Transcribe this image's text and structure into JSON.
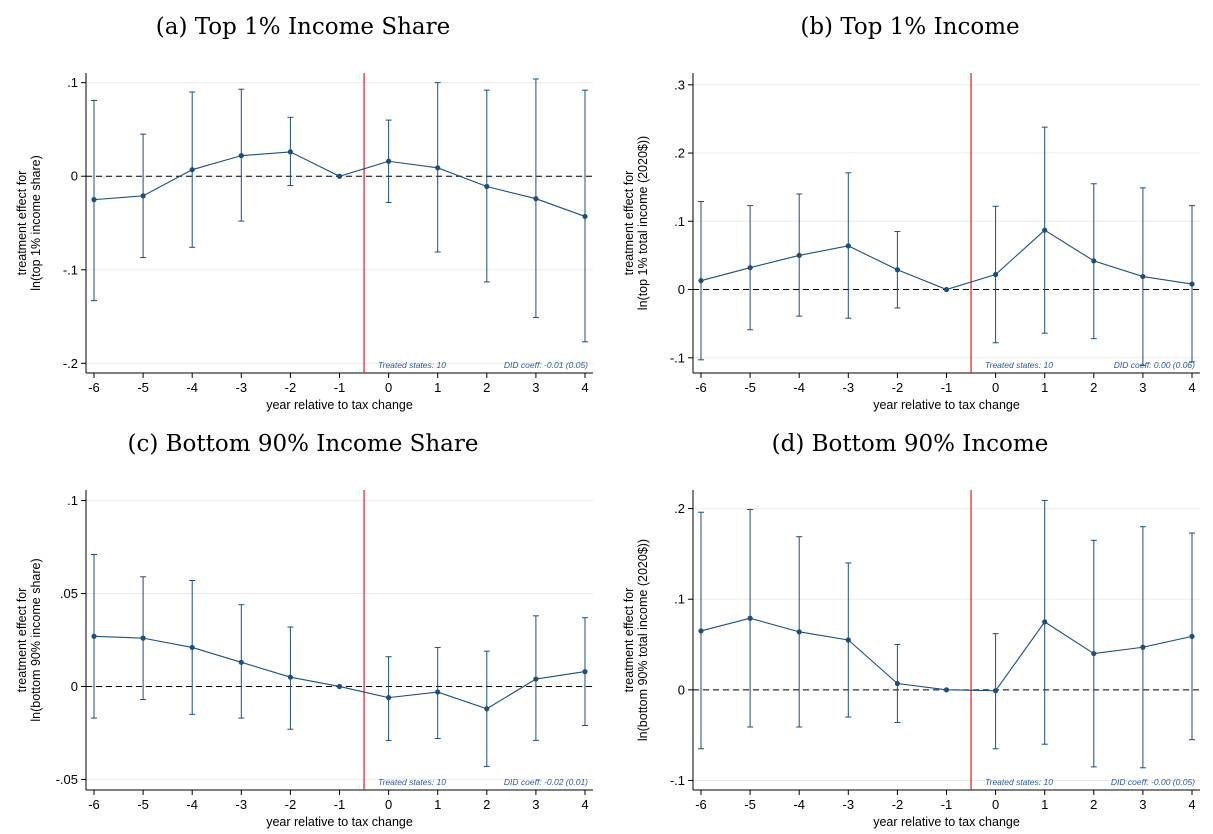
{
  "figure": {
    "panels": [
      {
        "title": "(a) Top 1% Income Share"
      },
      {
        "title": "(b) Top 1% Income"
      },
      {
        "title": "(c) Bottom 90% Income Share"
      },
      {
        "title": "(d) Bottom 90% Income"
      }
    ]
  },
  "chart_data": [
    {
      "type": "line",
      "title": "(a) Top 1% Income Share",
      "xlabel": "year relative to tax change",
      "ylabel": [
        "treatment effect for",
        "ln(top 1% income share)"
      ],
      "x": [
        -6,
        -5,
        -4,
        -3,
        -2,
        -1,
        0,
        1,
        2,
        3,
        4
      ],
      "xtick_labels": [
        "-6",
        "-5",
        "-4",
        "-3",
        "-2",
        "-1",
        "0",
        "1",
        "2",
        "3",
        "4"
      ],
      "ylim": [
        -0.205,
        0.105
      ],
      "yticks": [
        -0.2,
        -0.1,
        0,
        0.1
      ],
      "ytick_labels": [
        "-.2",
        "-.1",
        "0",
        ".1"
      ],
      "series": [
        {
          "estimate": [
            -0.025,
            -0.021,
            0.007,
            0.022,
            0.026,
            0.0,
            0.016,
            0.009,
            -0.011,
            -0.024,
            -0.043
          ],
          "ci_low": [
            -0.133,
            -0.087,
            -0.076,
            -0.048,
            -0.01,
            0.0,
            -0.028,
            -0.081,
            -0.113,
            -0.151,
            -0.177
          ],
          "ci_high": [
            0.081,
            0.045,
            0.09,
            0.093,
            0.063,
            0.0,
            0.06,
            0.1,
            0.092,
            0.104,
            0.092
          ]
        }
      ],
      "reference_lines": {
        "event_x": -0.5,
        "zero_y": 0
      },
      "notes": {
        "treated": "Treated states: 10",
        "did": "DID coeff: -0.01 (0.05)"
      },
      "colors": {
        "series": "#1f4e79",
        "event_line": "#e41a1c",
        "grid": "#ebebeb"
      },
      "grid": true
    },
    {
      "type": "line",
      "title": "(b) Top 1% Income",
      "xlabel": "year relative to tax change",
      "ylabel": [
        "treatment effect for",
        "ln(top 1% total income (2020$))"
      ],
      "x": [
        -6,
        -5,
        -4,
        -3,
        -2,
        -1,
        0,
        1,
        2,
        3,
        4
      ],
      "xtick_labels": [
        "-6",
        "-5",
        "-4",
        "-3",
        "-2",
        "-1",
        "0",
        "1",
        "2",
        "3",
        "4"
      ],
      "ylim": [
        -0.115,
        0.31
      ],
      "yticks": [
        -0.1,
        0,
        0.1,
        0.2,
        0.3
      ],
      "ytick_labels": [
        "-.1",
        "0",
        ".1",
        ".2",
        ".3"
      ],
      "series": [
        {
          "estimate": [
            0.013,
            0.032,
            0.05,
            0.064,
            0.029,
            0.0,
            0.022,
            0.087,
            0.042,
            0.019,
            0.008
          ],
          "ci_low": [
            -0.103,
            -0.059,
            -0.039,
            -0.042,
            -0.027,
            0.0,
            -0.078,
            -0.064,
            -0.072,
            -0.111,
            -0.106
          ],
          "ci_high": [
            0.129,
            0.123,
            0.14,
            0.171,
            0.085,
            0.0,
            0.122,
            0.238,
            0.155,
            0.149,
            0.123
          ]
        }
      ],
      "reference_lines": {
        "event_x": -0.5,
        "zero_y": 0
      },
      "notes": {
        "treated": "Treated states: 10",
        "did": "DID coeff: 0.00 (0.06)"
      },
      "colors": {
        "series": "#1f4e79",
        "event_line": "#e41a1c",
        "grid": "#ebebeb"
      },
      "grid": true
    },
    {
      "type": "line",
      "title": "(c) Bottom 90% Income Share",
      "xlabel": "year relative to tax change",
      "ylabel": [
        "treatment effect for",
        "ln(bottom 90% income share)"
      ],
      "x": [
        -6,
        -5,
        -4,
        -3,
        -2,
        -1,
        0,
        1,
        2,
        3,
        4
      ],
      "xtick_labels": [
        "-6",
        "-5",
        "-4",
        "-3",
        "-2",
        "-1",
        "0",
        "1",
        "2",
        "3",
        "4"
      ],
      "ylim": [
        -0.053,
        0.103
      ],
      "yticks": [
        -0.05,
        0,
        0.05,
        0.1
      ],
      "ytick_labels": [
        "-.05",
        "0",
        ".05",
        ".1"
      ],
      "series": [
        {
          "estimate": [
            0.027,
            0.026,
            0.021,
            0.013,
            0.005,
            0.0,
            -0.006,
            -0.003,
            -0.012,
            0.004,
            0.008
          ],
          "ci_low": [
            -0.017,
            -0.007,
            -0.015,
            -0.017,
            -0.023,
            0.0,
            -0.029,
            -0.028,
            -0.043,
            -0.029,
            -0.021
          ],
          "ci_high": [
            0.071,
            0.059,
            0.057,
            0.044,
            0.032,
            0.0,
            0.016,
            0.021,
            0.019,
            0.038,
            0.037
          ]
        }
      ],
      "reference_lines": {
        "event_x": -0.5,
        "zero_y": 0
      },
      "notes": {
        "treated": "Treated states: 10",
        "did": "DID coeff: -0.02 (0.01)"
      },
      "colors": {
        "series": "#1f4e79",
        "event_line": "#e41a1c",
        "grid": "#ebebeb"
      },
      "grid": true
    },
    {
      "type": "line",
      "title": "(d) Bottom 90% Income",
      "xlabel": "year relative to tax change",
      "ylabel": [
        "treatment effect for",
        "ln(bottom 90% total income (2020$))"
      ],
      "x": [
        -6,
        -5,
        -4,
        -3,
        -2,
        -1,
        0,
        1,
        2,
        3,
        4
      ],
      "xtick_labels": [
        "-6",
        "-5",
        "-4",
        "-3",
        "-2",
        "-1",
        "0",
        "1",
        "2",
        "3",
        "4"
      ],
      "ylim": [
        -0.105,
        0.215
      ],
      "yticks": [
        -0.1,
        0,
        0.1,
        0.2
      ],
      "ytick_labels": [
        "-.1",
        "0",
        ".1",
        ".2"
      ],
      "series": [
        {
          "estimate": [
            0.065,
            0.079,
            0.064,
            0.055,
            0.007,
            0.0,
            -0.001,
            0.075,
            0.04,
            0.047,
            0.059
          ],
          "ci_low": [
            -0.065,
            -0.041,
            -0.041,
            -0.03,
            -0.036,
            0.0,
            -0.065,
            -0.06,
            -0.085,
            -0.086,
            -0.055
          ],
          "ci_high": [
            0.196,
            0.199,
            0.169,
            0.14,
            0.05,
            0.0,
            0.062,
            0.209,
            0.165,
            0.18,
            0.173
          ]
        }
      ],
      "reference_lines": {
        "event_x": -0.5,
        "zero_y": 0
      },
      "notes": {
        "treated": "Treated states: 10",
        "did": "DID coeff: -0.00 (0.05)"
      },
      "colors": {
        "series": "#1f4e79",
        "event_line": "#e41a1c",
        "grid": "#ebebeb"
      },
      "grid": true
    }
  ]
}
